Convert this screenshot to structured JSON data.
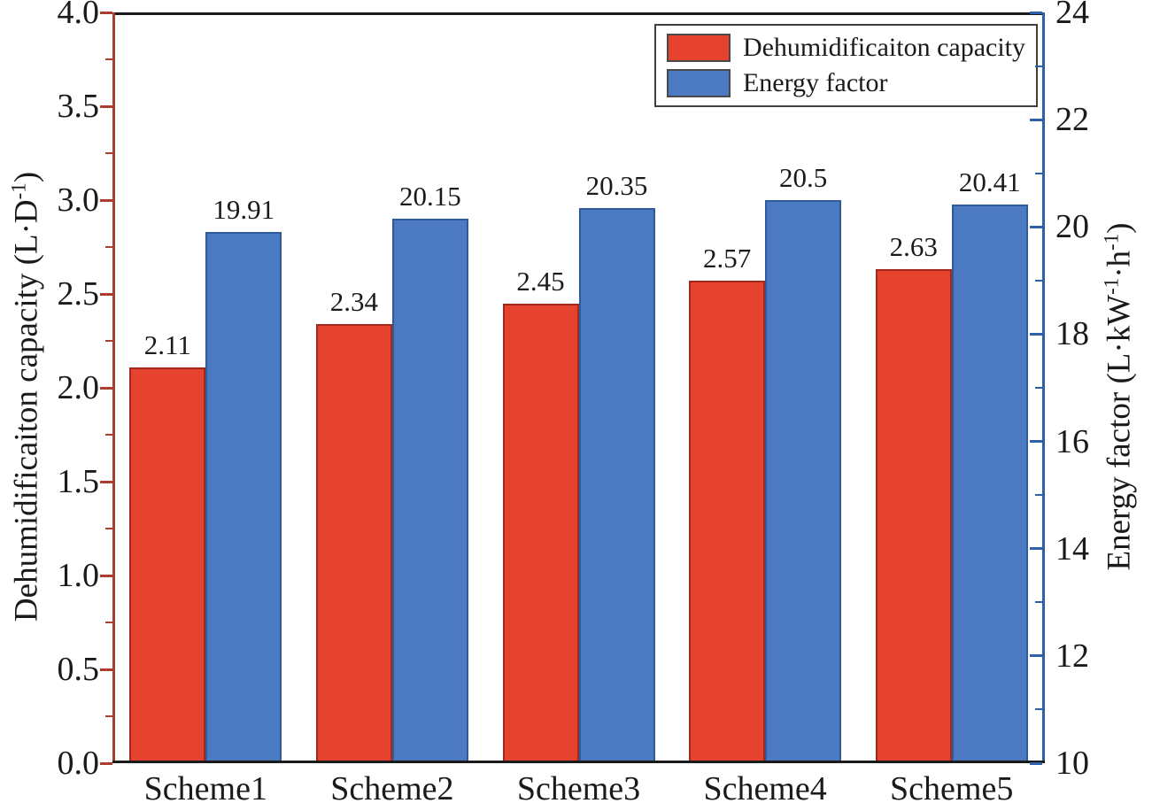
{
  "chart_data": {
    "type": "bar",
    "title": "",
    "categories": [
      "Scheme1",
      "Scheme2",
      "Scheme3",
      "Scheme4",
      "Scheme5"
    ],
    "series": [
      {
        "name": "Dehumidificaiton capacity",
        "axis": "left",
        "values": [
          2.11,
          2.34,
          2.45,
          2.57,
          2.63
        ],
        "value_labels": [
          "2.11",
          "2.34",
          "2.45",
          "2.57",
          "2.63"
        ],
        "fill": "#E5432D",
        "border": "#A02A1C"
      },
      {
        "name": "Energy factor",
        "axis": "right",
        "values": [
          19.91,
          20.15,
          20.35,
          20.5,
          20.41
        ],
        "value_labels": [
          "19.91",
          "20.15",
          "20.35",
          "20.5",
          "20.41"
        ],
        "fill": "#4B79C2",
        "border": "#2F5B9D"
      }
    ],
    "left_axis": {
      "title": "Dehumidificaiton capacity (L·D^{-1})",
      "min": 0,
      "max": 4,
      "major_step": 0.5,
      "minor_step": 0.25,
      "tick_labels": [
        "0.0",
        "0.5",
        "1.0",
        "1.5",
        "2.0",
        "2.5",
        "3.0",
        "3.5",
        "4.0"
      ],
      "color": "#A93E2E"
    },
    "right_axis": {
      "title": "Energy factor (L·kW^{-1}·h^{-1})",
      "min": 10,
      "max": 24,
      "major_step": 2,
      "minor_step": 1,
      "tick_labels": [
        "10",
        "12",
        "14",
        "16",
        "18",
        "20",
        "22",
        "24"
      ],
      "color": "#2E5FA8"
    },
    "x_axis": {
      "color": "#1A1A1A"
    },
    "legend": {
      "position": "top-right",
      "items": [
        "Dehumidificaiton capacity",
        "Energy factor"
      ]
    },
    "grid": false,
    "text_color": "#1A1A1A"
  }
}
